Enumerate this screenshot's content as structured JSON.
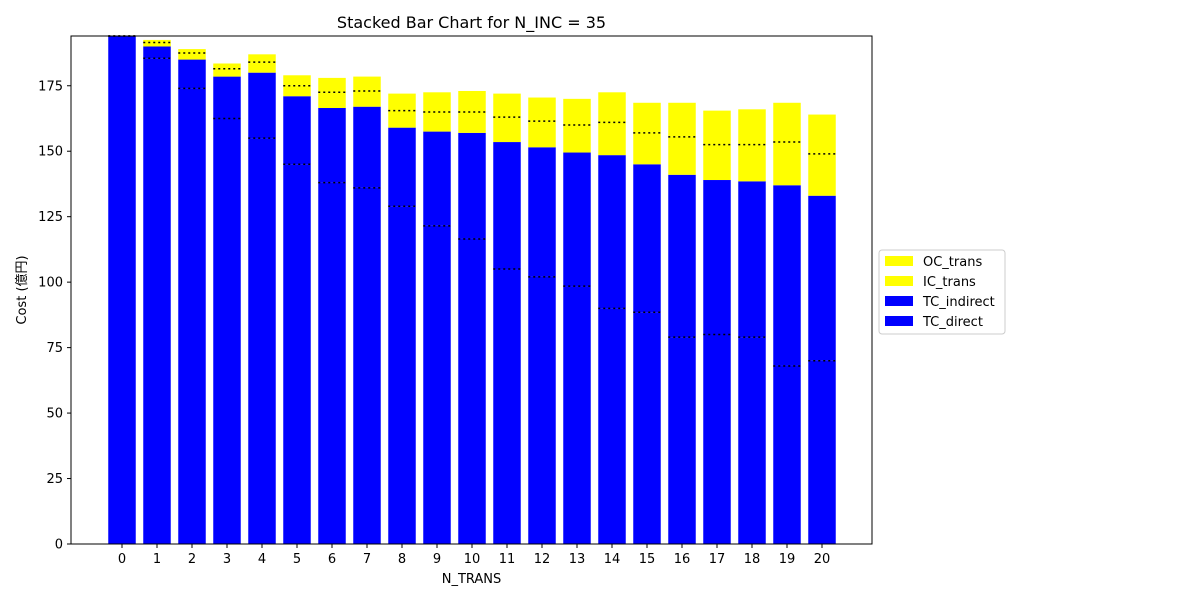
{
  "chart_data": {
    "type": "bar",
    "stacked": true,
    "title": "Stacked Bar Chart for N_INC = 35",
    "xlabel": "N_TRANS",
    "ylabel": "Cost (億円)",
    "categories": [
      "0",
      "1",
      "2",
      "3",
      "4",
      "5",
      "6",
      "7",
      "8",
      "9",
      "10",
      "11",
      "12",
      "13",
      "14",
      "15",
      "16",
      "17",
      "18",
      "19",
      "20"
    ],
    "ylim": [
      0,
      194
    ],
    "yticks": [
      0,
      25,
      50,
      75,
      100,
      125,
      150,
      175
    ],
    "grid": false,
    "legend_position": "center-right",
    "series": [
      {
        "name": "TC_direct",
        "color": "#0000ff",
        "values": [
          194,
          185.5,
          174,
          162.5,
          155,
          145,
          138,
          136,
          129,
          121.5,
          116.5,
          105,
          102,
          98.5,
          90,
          88.5,
          79,
          80,
          79,
          68,
          70
        ]
      },
      {
        "name": "TC_indirect",
        "color": "#0000ff",
        "values": [
          0,
          4.5,
          11,
          16,
          25,
          26,
          28.5,
          31,
          30,
          36,
          40.5,
          48.5,
          49.5,
          51,
          58.5,
          56.5,
          62,
          59,
          59.5,
          69,
          63
        ]
      },
      {
        "name": "IC_trans",
        "color": "#ffff00",
        "values": [
          0,
          1.5,
          2.5,
          3,
          4,
          4,
          6,
          6,
          6.5,
          7.5,
          8,
          9.5,
          10,
          10.5,
          12.5,
          12,
          14.5,
          13.5,
          14,
          16.5,
          16
        ]
      },
      {
        "name": "OC_trans",
        "color": "#ffff00",
        "values": [
          0,
          1,
          1.5,
          2,
          3,
          4,
          5.5,
          5.5,
          6.5,
          7.5,
          8,
          9,
          9,
          10,
          11.5,
          11.5,
          13,
          13,
          13.5,
          15,
          15
        ]
      }
    ]
  }
}
